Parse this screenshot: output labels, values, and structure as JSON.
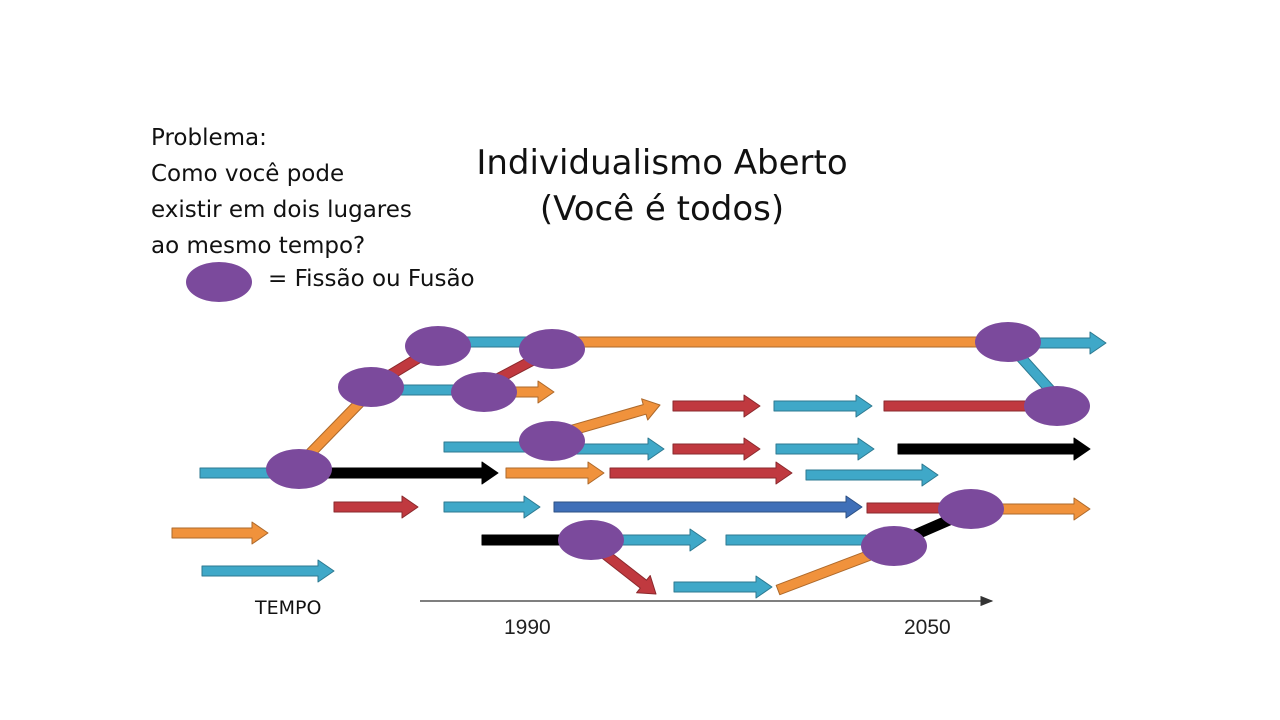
{
  "problem": {
    "lines": [
      "Problema:",
      "Como você pode",
      "existir em dois lugares",
      "ao mesmo tempo?"
    ]
  },
  "title": {
    "line1": "Individualismo Aberto",
    "line2": "(Você é todos)"
  },
  "legend": {
    "label": "= Fissão ou Fusão"
  },
  "axis": {
    "label": "TEMPO",
    "year_start": "1990",
    "year_end": "2050"
  },
  "colors": {
    "orange": "#F0923C",
    "teal": "#3FA8C8",
    "red": "#C0393F",
    "black": "#000000",
    "blue": "#3F6FB8",
    "node": "#7B4A9C"
  }
}
